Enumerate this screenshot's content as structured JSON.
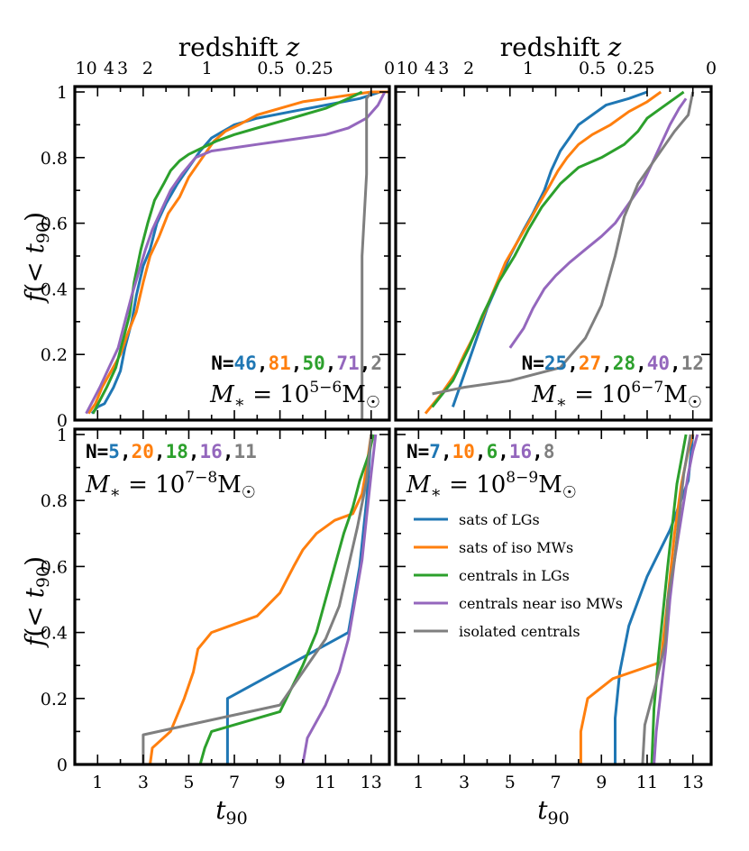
{
  "figure": {
    "top_axis_title": "redshift z",
    "x_axis_title": "t90",
    "y_axis_title": "f(< t90)"
  },
  "colors": {
    "blue": "#1f77b4",
    "orange": "#ff7f0e",
    "green": "#2ca02c",
    "purple": "#9467bd",
    "gray": "#7f7f7f"
  },
  "legend": [
    {
      "label": "sats of LGs",
      "color": "#1f77b4"
    },
    {
      "label": "sats of iso MWs",
      "color": "#ff7f0e"
    },
    {
      "label": "centrals in LGs",
      "color": "#2ca02c"
    },
    {
      "label": "centrals near iso MWs",
      "color": "#9467bd"
    },
    {
      "label": "isolated centrals",
      "color": "#7f7f7f"
    }
  ],
  "chart_data": [
    {
      "type": "line",
      "panel": "top-left",
      "mass_label": "M* = 10^{5-6} M_sun",
      "mass_exponent": "5−6",
      "counts": [
        "46",
        "81",
        "50",
        "71",
        "2"
      ],
      "xlim": [
        0,
        13.8
      ],
      "ylim": [
        0,
        1
      ],
      "x_ticks": [
        "1",
        "3",
        "5",
        "7",
        "9",
        "11",
        "13"
      ],
      "y_ticks": [
        "0",
        "0.2",
        "0.4",
        "0.6",
        "0.8",
        "1"
      ],
      "top_ticks": [
        "10",
        "4",
        "3",
        "2",
        "1",
        "0.5",
        "0.25",
        "0"
      ],
      "series": [
        {
          "name": "sats of LGs",
          "x": [
            0.75,
            1.0,
            1.3,
            1.7,
            2.0,
            2.2,
            2.5,
            2.7,
            3.0,
            3.3,
            3.6,
            4.0,
            4.5,
            5.0,
            5.5,
            6.0,
            6.5,
            7.0,
            8.0,
            9.5,
            11.0,
            12.5,
            13.4,
            13.7
          ],
          "y": [
            0.02,
            0.04,
            0.05,
            0.1,
            0.15,
            0.22,
            0.3,
            0.38,
            0.47,
            0.52,
            0.6,
            0.66,
            0.72,
            0.77,
            0.82,
            0.86,
            0.88,
            0.9,
            0.92,
            0.94,
            0.96,
            0.98,
            1.0,
            1.0
          ]
        },
        {
          "name": "sats of iso MWs",
          "x": [
            0.6,
            0.9,
            1.2,
            1.6,
            2.0,
            2.3,
            2.7,
            3.0,
            3.3,
            3.7,
            4.1,
            4.6,
            5.0,
            5.6,
            6.1,
            6.6,
            7.2,
            8.0,
            9.0,
            10.0,
            11.0,
            12.0,
            13.0,
            13.8
          ],
          "y": [
            0.02,
            0.05,
            0.1,
            0.15,
            0.2,
            0.26,
            0.33,
            0.42,
            0.5,
            0.56,
            0.63,
            0.68,
            0.74,
            0.8,
            0.85,
            0.88,
            0.9,
            0.93,
            0.95,
            0.97,
            0.98,
            0.99,
            1.0,
            1.0
          ]
        },
        {
          "name": "centrals in LGs",
          "x": [
            0.8,
            1.1,
            1.4,
            1.8,
            2.1,
            2.4,
            2.6,
            2.9,
            3.2,
            3.5,
            3.9,
            4.2,
            4.6,
            5.0,
            5.6,
            6.2,
            7.0,
            8.0,
            9.0,
            10.0,
            11.0,
            12.0,
            12.6
          ],
          "y": [
            0.02,
            0.06,
            0.1,
            0.16,
            0.24,
            0.32,
            0.42,
            0.52,
            0.6,
            0.67,
            0.72,
            0.76,
            0.79,
            0.81,
            0.83,
            0.85,
            0.87,
            0.89,
            0.91,
            0.93,
            0.95,
            0.98,
            1.0
          ]
        },
        {
          "name": "centrals near iso MWs",
          "x": [
            0.5,
            0.8,
            1.1,
            1.5,
            1.9,
            2.2,
            2.5,
            2.8,
            3.1,
            3.4,
            3.8,
            4.2,
            4.7,
            5.3,
            6.0,
            7.0,
            8.0,
            9.0,
            10.0,
            11.0,
            12.0,
            12.8,
            13.3,
            13.6
          ],
          "y": [
            0.02,
            0.06,
            0.1,
            0.16,
            0.22,
            0.3,
            0.38,
            0.45,
            0.52,
            0.58,
            0.64,
            0.7,
            0.75,
            0.8,
            0.82,
            0.83,
            0.84,
            0.85,
            0.86,
            0.87,
            0.89,
            0.92,
            0.96,
            1.0
          ]
        },
        {
          "name": "isolated centrals",
          "x": [
            12.6,
            12.6,
            12.6,
            12.8,
            12.8,
            13.0
          ],
          "y": [
            0.0,
            0.25,
            0.5,
            0.75,
            0.98,
            1.0
          ]
        }
      ]
    },
    {
      "type": "line",
      "panel": "top-right",
      "mass_label": "M* = 10^{6-7} M_sun",
      "mass_exponent": "6−7",
      "counts": [
        "25",
        "27",
        "28",
        "40",
        "12"
      ],
      "xlim": [
        0,
        13.8
      ],
      "ylim": [
        0,
        1
      ],
      "x_ticks": [
        "1",
        "3",
        "5",
        "7",
        "9",
        "11",
        "13"
      ],
      "y_ticks": [
        "0",
        "0.2",
        "0.4",
        "0.6",
        "0.8",
        "1"
      ],
      "top_ticks": [
        "10",
        "4",
        "3",
        "2",
        "1",
        "0.5",
        "0.25",
        "0"
      ],
      "series": [
        {
          "name": "sats of LGs",
          "x": [
            2.5,
            2.8,
            3.2,
            3.6,
            4.0,
            4.5,
            5.0,
            5.6,
            6.0,
            6.5,
            6.8,
            7.2,
            7.6,
            8.0,
            8.6,
            9.2,
            10.2,
            11.0
          ],
          "y": [
            0.04,
            0.1,
            0.18,
            0.26,
            0.34,
            0.42,
            0.5,
            0.58,
            0.63,
            0.7,
            0.76,
            0.82,
            0.86,
            0.9,
            0.93,
            0.96,
            0.98,
            1.0
          ]
        },
        {
          "name": "sats of iso MWs",
          "x": [
            1.3,
            2.0,
            2.6,
            3.0,
            3.6,
            4.2,
            4.8,
            5.3,
            5.8,
            6.2,
            6.7,
            7.1,
            7.5,
            8.0,
            8.6,
            9.4,
            10.2,
            11.0,
            11.6
          ],
          "y": [
            0.02,
            0.08,
            0.14,
            0.2,
            0.28,
            0.38,
            0.48,
            0.54,
            0.6,
            0.65,
            0.71,
            0.76,
            0.8,
            0.84,
            0.87,
            0.9,
            0.94,
            0.97,
            1.0
          ]
        },
        {
          "name": "centrals in LGs",
          "x": [
            1.6,
            2.5,
            3.2,
            3.8,
            4.5,
            5.2,
            5.8,
            6.4,
            7.2,
            8.0,
            9.0,
            10.0,
            10.6,
            11.0,
            11.6,
            12.2,
            12.6
          ],
          "y": [
            0.04,
            0.12,
            0.22,
            0.32,
            0.42,
            0.5,
            0.58,
            0.65,
            0.72,
            0.77,
            0.8,
            0.84,
            0.88,
            0.92,
            0.95,
            0.98,
            1.0
          ]
        },
        {
          "name": "centrals near iso MWs",
          "x": [
            5.0,
            5.6,
            6.0,
            6.5,
            7.0,
            7.6,
            8.3,
            9.0,
            9.6,
            10.0,
            10.4,
            10.8,
            11.2,
            11.6,
            12.0,
            12.4,
            12.7
          ],
          "y": [
            0.22,
            0.28,
            0.34,
            0.4,
            0.44,
            0.48,
            0.52,
            0.56,
            0.6,
            0.64,
            0.68,
            0.72,
            0.78,
            0.84,
            0.9,
            0.95,
            0.98
          ]
        },
        {
          "name": "isolated centrals",
          "x": [
            1.6,
            3.0,
            5.0,
            7.2,
            8.3,
            9.0,
            9.6,
            10.0,
            10.6,
            11.4,
            12.2,
            12.8,
            13.0
          ],
          "y": [
            0.08,
            0.1,
            0.12,
            0.16,
            0.25,
            0.35,
            0.5,
            0.62,
            0.72,
            0.8,
            0.88,
            0.93,
            1.0
          ]
        }
      ]
    },
    {
      "type": "line",
      "panel": "bottom-left",
      "mass_label": "M* = 10^{7-8} M_sun",
      "mass_exponent": "7−8",
      "counts": [
        "5",
        "20",
        "18",
        "16",
        "11"
      ],
      "xlim": [
        0,
        13.8
      ],
      "ylim": [
        0,
        1
      ],
      "x_ticks": [
        "1",
        "3",
        "5",
        "7",
        "9",
        "11",
        "13"
      ],
      "y_ticks": [
        "0",
        "0.2",
        "0.4",
        "0.6",
        "0.8",
        "1"
      ],
      "series": [
        {
          "name": "sats of LGs",
          "x": [
            6.7,
            6.7,
            12.0,
            12.5,
            12.8,
            13.0
          ],
          "y": [
            0.0,
            0.2,
            0.4,
            0.6,
            0.8,
            1.0
          ]
        },
        {
          "name": "sats of iso MWs",
          "x": [
            3.3,
            3.4,
            4.2,
            4.8,
            5.2,
            5.4,
            6.0,
            8.0,
            9.0,
            9.6,
            10.0,
            10.6,
            11.4,
            12.2,
            12.6,
            12.8,
            13.0
          ],
          "y": [
            0.0,
            0.05,
            0.1,
            0.2,
            0.28,
            0.35,
            0.4,
            0.45,
            0.52,
            0.6,
            0.65,
            0.7,
            0.74,
            0.76,
            0.82,
            0.9,
            1.0
          ]
        },
        {
          "name": "centrals in LGs",
          "x": [
            5.5,
            5.7,
            6.0,
            9.0,
            10.0,
            10.6,
            11.0,
            11.4,
            11.8,
            12.2,
            12.5,
            12.9,
            13.1
          ],
          "y": [
            0.0,
            0.05,
            0.1,
            0.16,
            0.3,
            0.4,
            0.5,
            0.6,
            0.7,
            0.78,
            0.86,
            0.94,
            1.0
          ]
        },
        {
          "name": "centrals near iso MWs",
          "x": [
            10.0,
            10.2,
            11.0,
            11.6,
            12.0,
            12.3,
            12.6,
            12.8,
            13.0,
            13.2
          ],
          "y": [
            0.0,
            0.08,
            0.18,
            0.28,
            0.38,
            0.5,
            0.62,
            0.75,
            0.88,
            1.0
          ]
        },
        {
          "name": "isolated centrals",
          "x": [
            3.0,
            3.0,
            9.0,
            10.0,
            11.0,
            11.6,
            12.0,
            12.4,
            12.8,
            13.0
          ],
          "y": [
            0.0,
            0.09,
            0.18,
            0.28,
            0.38,
            0.48,
            0.6,
            0.72,
            0.86,
            1.0
          ]
        }
      ]
    },
    {
      "type": "line",
      "panel": "bottom-right",
      "mass_label": "M* = 10^{8-9} M_sun",
      "mass_exponent": "8−9",
      "counts": [
        "7",
        "10",
        "6",
        "16",
        "8"
      ],
      "xlim": [
        0,
        13.8
      ],
      "ylim": [
        0,
        1
      ],
      "x_ticks": [
        "1",
        "3",
        "5",
        "7",
        "9",
        "11",
        "13"
      ],
      "y_ticks": [
        "0",
        "0.2",
        "0.4",
        "0.6",
        "0.8",
        "1"
      ],
      "series": [
        {
          "name": "sats of LGs",
          "x": [
            9.6,
            9.6,
            9.8,
            10.2,
            11.0,
            12.0,
            12.8,
            13.0
          ],
          "y": [
            0.0,
            0.14,
            0.28,
            0.42,
            0.57,
            0.71,
            0.86,
            1.0
          ]
        },
        {
          "name": "sats of iso MWs",
          "x": [
            8.1,
            8.1,
            8.4,
            9.5,
            11.6,
            11.9,
            12.2,
            12.5,
            12.8,
            13.0
          ],
          "y": [
            0.0,
            0.1,
            0.2,
            0.26,
            0.31,
            0.5,
            0.7,
            0.85,
            0.95,
            1.0
          ]
        },
        {
          "name": "centrals in LGs",
          "x": [
            11.2,
            11.3,
            11.5,
            11.9,
            12.3,
            12.7
          ],
          "y": [
            0.0,
            0.17,
            0.33,
            0.6,
            0.85,
            1.0
          ]
        },
        {
          "name": "centrals near iso MWs",
          "x": [
            11.3,
            11.4,
            11.6,
            11.8,
            12.0,
            12.2,
            12.5,
            12.8,
            13.0,
            13.2
          ],
          "y": [
            0.0,
            0.1,
            0.22,
            0.34,
            0.5,
            0.62,
            0.75,
            0.88,
            0.95,
            1.0
          ]
        },
        {
          "name": "isolated centrals",
          "x": [
            10.8,
            10.9,
            11.4,
            11.8,
            11.9,
            12.2,
            12.6,
            12.9
          ],
          "y": [
            0.0,
            0.12,
            0.25,
            0.37,
            0.5,
            0.62,
            0.88,
            1.0
          ]
        }
      ]
    }
  ]
}
